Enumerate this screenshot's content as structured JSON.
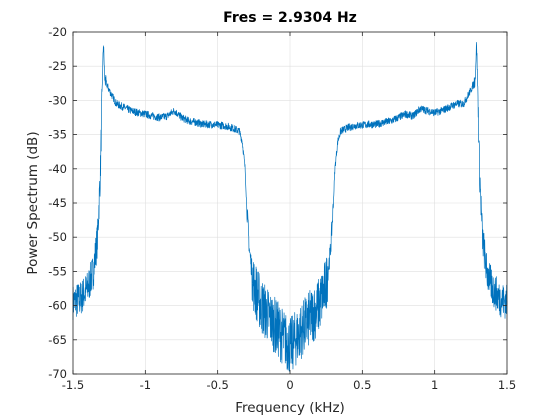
{
  "chart_data": {
    "type": "line",
    "title": "Fres = 2.9304 Hz",
    "xlabel": "Frequency (kHz)",
    "ylabel": "Power Spectrum (dB)",
    "xlim": [
      -1.5,
      1.5
    ],
    "ylim": [
      -70,
      -20
    ],
    "xticks": [
      -1.5,
      -1,
      -0.5,
      0,
      0.5,
      1,
      1.5
    ],
    "xtick_labels": [
      "-1.5",
      "-1",
      "-0.5",
      "0",
      "0.5",
      "1",
      "1.5"
    ],
    "yticks": [
      -70,
      -65,
      -60,
      -55,
      -50,
      -45,
      -40,
      -35,
      -30,
      -25,
      -20
    ],
    "ytick_labels": [
      "-70",
      "-65",
      "-60",
      "-55",
      "-50",
      "-45",
      "-40",
      "-35",
      "-30",
      "-25",
      "-20"
    ],
    "grid": true,
    "series_color": "#0072BD",
    "series": [
      {
        "x": [
          -1.5,
          -1.45,
          -1.4,
          -1.36,
          -1.33,
          -1.31,
          -1.3,
          -1.29,
          -1.28,
          -1.25,
          -1.2,
          -1.15,
          -1.1,
          -1.05,
          -1.0,
          -0.95,
          -0.9,
          -0.85,
          -0.8,
          -0.75,
          -0.7,
          -0.65,
          -0.6,
          -0.55,
          -0.5,
          -0.45,
          -0.4,
          -0.35,
          -0.33,
          -0.31,
          -0.3,
          -0.28,
          -0.25,
          -0.2,
          -0.15,
          -0.1,
          -0.05,
          0.0,
          0.05,
          0.1,
          0.15,
          0.2,
          0.25,
          0.28,
          0.3,
          0.31,
          0.33,
          0.35,
          0.4,
          0.45,
          0.5,
          0.55,
          0.6,
          0.65,
          0.7,
          0.75,
          0.8,
          0.85,
          0.9,
          0.95,
          1.0,
          1.05,
          1.1,
          1.15,
          1.2,
          1.25,
          1.28,
          1.29,
          1.3,
          1.31,
          1.33,
          1.36,
          1.4,
          1.45,
          1.5
        ],
        "y": [
          -59.5,
          -59,
          -57.5,
          -55,
          -50,
          -40,
          -30,
          -21.5,
          -27,
          -28.5,
          -30.5,
          -31,
          -31.5,
          -31.8,
          -32,
          -32.3,
          -32.5,
          -32.3,
          -31.5,
          -32.5,
          -33,
          -33.2,
          -33.5,
          -33.5,
          -33.6,
          -33.7,
          -34,
          -34.5,
          -36,
          -40,
          -45,
          -52,
          -57,
          -60,
          -61.5,
          -63,
          -64.5,
          -66,
          -64.5,
          -63,
          -61.5,
          -60,
          -57,
          -52,
          -45,
          -40,
          -36,
          -34.5,
          -34,
          -33.7,
          -33.6,
          -33.5,
          -33.5,
          -33.2,
          -33,
          -32.5,
          -32,
          -32.3,
          -31.2,
          -31.5,
          -31.8,
          -31.5,
          -31,
          -30.5,
          -30.5,
          -28.5,
          -27,
          -21.5,
          -30,
          -40,
          -50,
          -55,
          -57.5,
          -59,
          -59.5
        ]
      }
    ]
  }
}
